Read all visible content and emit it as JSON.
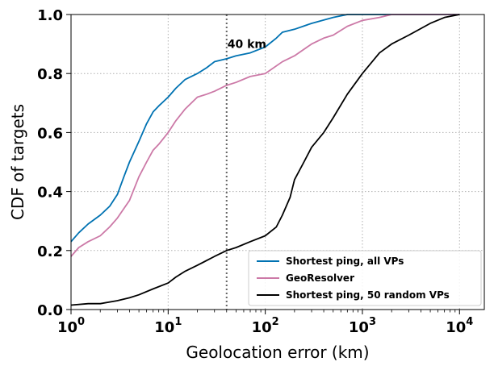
{
  "chart_data": {
    "type": "line",
    "xlabel": "Geolocation error (km)",
    "ylabel": "CDF of targets",
    "xscale": "log",
    "xlim": [
      1,
      18000
    ],
    "ylim": [
      0,
      1
    ],
    "x_ticks": [
      {
        "value": 1,
        "base": "10",
        "exp": "0"
      },
      {
        "value": 10,
        "base": "10",
        "exp": "1"
      },
      {
        "value": 100,
        "base": "10",
        "exp": "2"
      },
      {
        "value": 1000,
        "base": "10",
        "exp": "3"
      },
      {
        "value": 10000,
        "base": "10",
        "exp": "4"
      }
    ],
    "y_ticks": [
      {
        "value": 0,
        "label": "0.0"
      },
      {
        "value": 0.2,
        "label": "0.2"
      },
      {
        "value": 0.4,
        "label": "0.4"
      },
      {
        "value": 0.6,
        "label": "0.6"
      },
      {
        "value": 0.8,
        "label": "0.8"
      },
      {
        "value": 1,
        "label": "1.0"
      }
    ],
    "grid": true,
    "legend_position": "lower-right",
    "annotation": {
      "x": 40,
      "label": "40 km"
    },
    "series": [
      {
        "name": "Shortest ping, all VPs",
        "color": "#0072b2",
        "points": [
          [
            1,
            0.23
          ],
          [
            1.2,
            0.26
          ],
          [
            1.5,
            0.29
          ],
          [
            2,
            0.32
          ],
          [
            2.5,
            0.35
          ],
          [
            3,
            0.39
          ],
          [
            3.5,
            0.45
          ],
          [
            4,
            0.5
          ],
          [
            5,
            0.57
          ],
          [
            6,
            0.63
          ],
          [
            7,
            0.67
          ],
          [
            8,
            0.69
          ],
          [
            10,
            0.72
          ],
          [
            12,
            0.75
          ],
          [
            15,
            0.78
          ],
          [
            20,
            0.8
          ],
          [
            25,
            0.82
          ],
          [
            30,
            0.84
          ],
          [
            40,
            0.85
          ],
          [
            50,
            0.86
          ],
          [
            70,
            0.87
          ],
          [
            100,
            0.89
          ],
          [
            130,
            0.92
          ],
          [
            150,
            0.94
          ],
          [
            200,
            0.95
          ],
          [
            300,
            0.97
          ],
          [
            500,
            0.99
          ],
          [
            700,
            1.0
          ],
          [
            10000,
            1.0
          ]
        ]
      },
      {
        "name": "GeoResolver",
        "color": "#cc79a7",
        "points": [
          [
            1,
            0.18
          ],
          [
            1.2,
            0.21
          ],
          [
            1.5,
            0.23
          ],
          [
            2,
            0.25
          ],
          [
            2.5,
            0.28
          ],
          [
            3,
            0.31
          ],
          [
            4,
            0.37
          ],
          [
            5,
            0.45
          ],
          [
            6,
            0.5
          ],
          [
            7,
            0.54
          ],
          [
            8,
            0.56
          ],
          [
            10,
            0.6
          ],
          [
            12,
            0.64
          ],
          [
            15,
            0.68
          ],
          [
            20,
            0.72
          ],
          [
            25,
            0.73
          ],
          [
            30,
            0.74
          ],
          [
            40,
            0.76
          ],
          [
            50,
            0.77
          ],
          [
            70,
            0.79
          ],
          [
            100,
            0.8
          ],
          [
            150,
            0.84
          ],
          [
            200,
            0.86
          ],
          [
            300,
            0.9
          ],
          [
            400,
            0.92
          ],
          [
            500,
            0.93
          ],
          [
            700,
            0.96
          ],
          [
            1000,
            0.98
          ],
          [
            1500,
            0.99
          ],
          [
            2000,
            1.0
          ],
          [
            10000,
            1.0
          ]
        ]
      },
      {
        "name": "Shortest ping, 50 random VPs",
        "color": "#000000",
        "points": [
          [
            1,
            0.015
          ],
          [
            1.5,
            0.02
          ],
          [
            2,
            0.02
          ],
          [
            3,
            0.03
          ],
          [
            4,
            0.04
          ],
          [
            5,
            0.05
          ],
          [
            7,
            0.07
          ],
          [
            10,
            0.09
          ],
          [
            12,
            0.11
          ],
          [
            15,
            0.13
          ],
          [
            20,
            0.15
          ],
          [
            30,
            0.18
          ],
          [
            40,
            0.2
          ],
          [
            50,
            0.21
          ],
          [
            70,
            0.23
          ],
          [
            100,
            0.25
          ],
          [
            130,
            0.28
          ],
          [
            150,
            0.32
          ],
          [
            180,
            0.38
          ],
          [
            200,
            0.44
          ],
          [
            250,
            0.5
          ],
          [
            300,
            0.55
          ],
          [
            400,
            0.6
          ],
          [
            500,
            0.65
          ],
          [
            700,
            0.73
          ],
          [
            1000,
            0.8
          ],
          [
            1500,
            0.87
          ],
          [
            2000,
            0.9
          ],
          [
            3000,
            0.93
          ],
          [
            5000,
            0.97
          ],
          [
            7000,
            0.99
          ],
          [
            10000,
            1.0
          ]
        ]
      }
    ]
  }
}
